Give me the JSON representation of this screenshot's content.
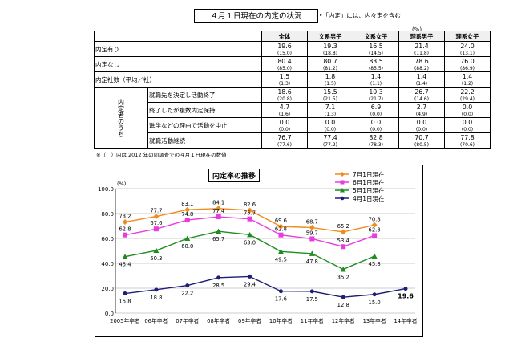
{
  "table": {
    "title": "４月１日現在の内定の状況",
    "note": "•「内定」には、内々定を含む",
    "unit": "(%)",
    "columns": [
      "全体",
      "文系男子",
      "文系女子",
      "理系男子",
      "理系女子"
    ],
    "rows": [
      {
        "label": "内定有り",
        "values": [
          "19.6",
          "19.3",
          "16.5",
          "21.4",
          "24.0"
        ],
        "prev": [
          "(15.0)",
          "(18.8)",
          "(14.5)",
          "(11.8)",
          "(13.1)"
        ]
      },
      {
        "label": "内定なし",
        "values": [
          "80.4",
          "80.7",
          "83.5",
          "78.6",
          "76.0"
        ],
        "prev": [
          "(85.0)",
          "(81.2)",
          "(85.5)",
          "(88.2)",
          "(86.9)"
        ]
      },
      {
        "label": "内定社数（平均／社）",
        "values": [
          "1.5",
          "1.8",
          "1.4",
          "1.4",
          "1.4"
        ],
        "prev": [
          "(1.3)",
          "(1.5)",
          "(1.1)",
          "(1.4)",
          "(1.2)"
        ]
      }
    ],
    "group_label": "内定者のうち",
    "group_rows": [
      {
        "label": "就職先を決定し活動終了",
        "values": [
          "18.6",
          "15.5",
          "10.3",
          "26.7",
          "22.2"
        ],
        "prev": [
          "(20.8)",
          "(21.5)",
          "(21.7)",
          "(14.6)",
          "(29.4)"
        ]
      },
      {
        "label": "終了したが複数内定保持",
        "values": [
          "4.7",
          "7.1",
          "6.9",
          "2.7",
          "0.0"
        ],
        "prev": [
          "(1.6)",
          "(1.3)",
          "(0.0)",
          "(4.9)",
          "(0.0)"
        ]
      },
      {
        "label": "進学などの理由で活動を中止",
        "values": [
          "0.0",
          "0.0",
          "0.0",
          "0.0",
          "0.0"
        ],
        "prev": [
          "(0.0)",
          "(0.0)",
          "(0.0)",
          "(0.0)",
          "(0.0)"
        ]
      },
      {
        "label": "就職活動継続",
        "values": [
          "76.7",
          "77.4",
          "82.8",
          "70.7",
          "77.8"
        ],
        "prev": [
          "(77.6)",
          "(77.2)",
          "(78.3)",
          "(80.5)",
          "(70.6)"
        ]
      }
    ],
    "footnote": "※（　）内は 2012 年の同調査での４月１日現在の数値"
  },
  "chart_data": {
    "type": "line",
    "title": "内定率の推移",
    "ylabel": "(%)",
    "ylim": [
      0,
      100
    ],
    "yticks": [
      "0.0",
      "20.0",
      "40.0",
      "60.0",
      "80.0",
      "100.0"
    ],
    "categories": [
      "2005年卒者",
      "06年卒者",
      "07年卒者",
      "08年卒者",
      "09年卒者",
      "10年卒者",
      "11年卒者",
      "12年卒者",
      "13年卒者",
      "14年卒者"
    ],
    "legend_position": "top-right",
    "series": [
      {
        "name": "7月1日現在",
        "color": "#f08c1e",
        "marker": "diamond",
        "values": [
          73.2,
          77.7,
          83.1,
          84.1,
          82.6,
          69.6,
          68.7,
          65.2,
          70.8,
          null
        ]
      },
      {
        "name": "6月1日現在",
        "color": "#e83ce0",
        "marker": "square",
        "values": [
          62.8,
          67.6,
          74.8,
          77.4,
          75.7,
          62.8,
          59.7,
          53.4,
          62.3,
          null
        ]
      },
      {
        "name": "5月1日現在",
        "color": "#1e8c1e",
        "marker": "triangle",
        "values": [
          45.4,
          50.3,
          60.0,
          65.7,
          63.0,
          49.5,
          47.8,
          35.2,
          45.8,
          null
        ]
      },
      {
        "name": "4月1日現在",
        "color": "#1e1e78",
        "marker": "circle",
        "values": [
          15.8,
          18.8,
          22.2,
          28.5,
          29.4,
          17.6,
          17.5,
          12.8,
          15.0,
          19.6
        ]
      }
    ]
  }
}
